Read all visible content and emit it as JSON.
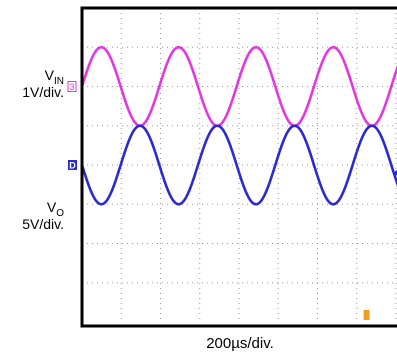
{
  "channels": {
    "vin": {
      "name": "V",
      "sub": "IN",
      "scale": "1V/div.",
      "marker": "3",
      "color": "#e238e2"
    },
    "vo": {
      "name": "V",
      "sub": "O",
      "scale": "5V/div.",
      "marker": "D",
      "color": "#2a2ad0"
    }
  },
  "timebase": "200µs/div.",
  "chart_data": {
    "type": "line",
    "title": "",
    "xlabel": "200µs/div.",
    "x_unit": "div",
    "xlim": [
      0,
      8.1
    ],
    "grid": true,
    "grid_divisions": {
      "x": 8.1,
      "y": 8
    },
    "trigger_marker_color": "#f0a020",
    "series": [
      {
        "name": "VIN",
        "label": "1V/div.",
        "color": "#e238e2",
        "waveform": "sine",
        "amplitude_div": 1.0,
        "offset_div_from_top": 2.0,
        "period_div": 1.97,
        "phase_start": "rising from mid-level at x=0"
      },
      {
        "name": "VO",
        "label": "5V/div.",
        "color": "#2a2ad0",
        "waveform": "sine",
        "amplitude_div": 1.0,
        "offset_div_from_top": 4.0,
        "period_div": 1.97,
        "phase_start": "falling from mid-level at x=0"
      }
    ]
  }
}
